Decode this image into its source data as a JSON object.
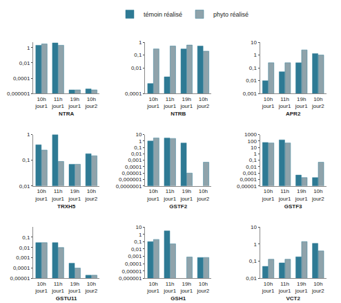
{
  "chart_data": [
    {
      "type": "bar",
      "title": "NTRA",
      "categories": [
        "10h jour1",
        "11h jour1",
        "19h jour1",
        "10h jour2"
      ],
      "series": [
        {
          "name": "témoin réalisé",
          "color": "#2e7a94",
          "values": [
            2,
            4,
            3e-06,
            4e-06
          ]
        },
        {
          "name": "phyto réalisé",
          "color": "#8fa3ab",
          "values": [
            3,
            2,
            3e-06,
            3e-06
          ]
        }
      ],
      "ylim": [
        1e-06,
        5
      ],
      "yticks": [
        {
          "value": 1e-06,
          "label": "0,000001"
        },
        {
          "value": 0.0001,
          "label": "0,0001"
        },
        {
          "value": 0.01,
          "label": "0,01"
        },
        1
      ],
      "log": "y",
      "grid": false,
      "legend": "top"
    },
    {
      "type": "bar",
      "title": "NTRB",
      "categories": [
        "10h jour1",
        "11h jour1",
        "19h jour1",
        "10h jour2"
      ],
      "series": [
        {
          "name": "témoin réalisé",
          "color": "#2e7a94",
          "values": [
            0.0006,
            0.002,
            0.3,
            0.5
          ]
        },
        {
          "name": "phyto réalisé",
          "color": "#8fa3ab",
          "values": [
            0.3,
            0.5,
            0.6,
            0.2
          ]
        }
      ],
      "ylim": [
        0.0001,
        1
      ],
      "yticks": [
        {
          "value": 0.0001,
          "label": "0,0001"
        },
        {
          "value": 0.01,
          "label": "0,01"
        },
        {
          "value": 0.1,
          "label": "0,1"
        },
        1
      ],
      "log": "y",
      "grid": false
    },
    {
      "type": "bar",
      "title": "APR2",
      "categories": [
        "10h jour1",
        "11h jour1",
        "19h jour1",
        "10h jour2"
      ],
      "series": [
        {
          "name": "témoin réalisé",
          "color": "#2e7a94",
          "values": [
            0.01,
            0.05,
            0.25,
            1.3
          ]
        },
        {
          "name": "phyto réalisé",
          "color": "#8fa3ab",
          "values": [
            0.25,
            0.25,
            2.5,
            1
          ]
        }
      ],
      "ylim": [
        0.001,
        10
      ],
      "yticks": [
        {
          "value": 0.001,
          "label": "0,001"
        },
        {
          "value": 0.01,
          "label": "0,01"
        },
        {
          "value": 0.1,
          "label": "0,1"
        },
        1,
        10
      ],
      "log": "y",
      "grid": false
    },
    {
      "type": "bar",
      "title": "TRXH5",
      "categories": [
        "10h jour1",
        "11h jour1",
        "19h jour1",
        "10h jour2"
      ],
      "series": [
        {
          "name": "témoin réalisé",
          "color": "#2e7a94",
          "values": [
            0.4,
            1,
            0.07,
            0.18
          ]
        },
        {
          "name": "phyto réalisé",
          "color": "#8fa3ab",
          "values": [
            0.25,
            0.09,
            0.07,
            0.15
          ]
        }
      ],
      "ylim": [
        0.01,
        1
      ],
      "yticks": [
        {
          "value": 0.01,
          "label": "0,01"
        },
        {
          "value": 0.1,
          "label": "0,1"
        },
        1
      ],
      "log": "y",
      "grid": false
    },
    {
      "type": "bar",
      "title": "GSTF2",
      "categories": [
        "10h jour1",
        "11h jour1",
        "19h jour1",
        "10h jour2"
      ],
      "series": [
        {
          "name": "témoin réalisé",
          "color": "#2e7a94",
          "values": [
            1,
            3,
            0.5,
            null
          ]
        },
        {
          "name": "phyto réalisé",
          "color": "#8fa3ab",
          "values": [
            3,
            2.5,
            1e-05,
            0.0005
          ]
        }
      ],
      "ylim": [
        1e-07,
        10
      ],
      "yticks": [
        {
          "value": 1e-07,
          "label": "0,0000001"
        },
        {
          "value": 1e-06,
          "label": "0,000001"
        },
        {
          "value": 1e-05,
          "label": "0,00001"
        },
        {
          "value": 0.0001,
          "label": "0,0001"
        },
        {
          "value": 0.001,
          "label": "0,001"
        },
        {
          "value": 0.01,
          "label": "0,01"
        },
        {
          "value": 0.1,
          "label": "0,1"
        },
        1,
        10
      ],
      "log": "y",
      "grid": false
    },
    {
      "type": "bar",
      "title": "GSTF3",
      "categories": [
        "10h jour1",
        "11h jour1",
        "19h jour1",
        "10h jour2"
      ],
      "series": [
        {
          "name": "témoin réalisé",
          "color": "#2e7a94",
          "values": [
            60,
            150,
            0.0005,
            0.0002
          ]
        },
        {
          "name": "phyto réalisé",
          "color": "#8fa3ab",
          "values": [
            50,
            50,
            0.0002,
            0.05
          ]
        }
      ],
      "ylim": [
        1e-05,
        1000
      ],
      "yticks": [
        {
          "value": 1e-05,
          "label": "0,00001"
        },
        {
          "value": 0.0001,
          "label": "0,0001"
        },
        {
          "value": 0.001,
          "label": "0,001"
        },
        {
          "value": 0.01,
          "label": "0,01"
        },
        {
          "value": 0.1,
          "label": "0,1"
        },
        1,
        10,
        100,
        1000
      ],
      "log": "y",
      "grid": false
    },
    {
      "type": "bar",
      "title": "GSTU11",
      "categories": [
        "10h jour1",
        "11h jour1",
        "19h jour1",
        "10h jour2"
      ],
      "series": [
        {
          "name": "témoin réalisé",
          "color": "#2e7a94",
          "values": [
            0.03,
            0.03,
            0.0003,
            2e-05
          ]
        },
        {
          "name": "phyto réalisé",
          "color": "#8fa3ab",
          "values": [
            0.03,
            0.01,
            0.0001,
            2e-05
          ]
        }
      ],
      "ylim": [
        1e-05,
        1
      ],
      "yticks": [
        {
          "value": 1e-05,
          "label": "0,00001"
        },
        {
          "value": 0.0001,
          "label": "0,0001"
        },
        {
          "value": 0.001,
          "label": "0,001"
        },
        {
          "value": 0.01,
          "label": "0,01"
        },
        {
          "value": 0.1,
          "label": "0,1"
        }
      ],
      "log": "y",
      "grid": false
    },
    {
      "type": "bar",
      "title": "GSH1",
      "categories": [
        "10h jour1",
        "11h jour1",
        "19h jour1",
        "10h jour2"
      ],
      "series": [
        {
          "name": "témoin réalisé",
          "color": "#2e7a94",
          "values": [
            0.1,
            3,
            null,
            0.0007
          ]
        },
        {
          "name": "phyto réalisé",
          "color": "#8fa3ab",
          "values": [
            0.2,
            0.05,
            0.0008,
            0.0007
          ]
        }
      ],
      "ylim": [
        1e-06,
        10
      ],
      "yticks": [
        {
          "value": 1e-06,
          "label": "0,000001"
        },
        {
          "value": 1e-05,
          "label": "0,00001"
        },
        {
          "value": 0.0001,
          "label": "0,0001"
        },
        {
          "value": 0.001,
          "label": "0,001"
        },
        {
          "value": 0.01,
          "label": "0,01"
        },
        {
          "value": 0.1,
          "label": "0,1"
        },
        1,
        10
      ],
      "log": "y",
      "grid": false
    },
    {
      "type": "bar",
      "title": "VCT2",
      "categories": [
        "10h jour1",
        "11h jour1",
        "19h jour1",
        "10h jour2"
      ],
      "series": [
        {
          "name": "témoin réalisé",
          "color": "#2e7a94",
          "values": [
            0.05,
            0.08,
            0.18,
            1.1
          ]
        },
        {
          "name": "phyto réalisé",
          "color": "#8fa3ab",
          "values": [
            0.13,
            0.13,
            1.4,
            0.4
          ]
        }
      ],
      "ylim": [
        0.01,
        10
      ],
      "yticks": [
        {
          "value": 0.01,
          "label": "0,01"
        },
        {
          "value": 0.1,
          "label": "0,1"
        },
        1,
        10
      ],
      "log": "y",
      "grid": false
    }
  ]
}
